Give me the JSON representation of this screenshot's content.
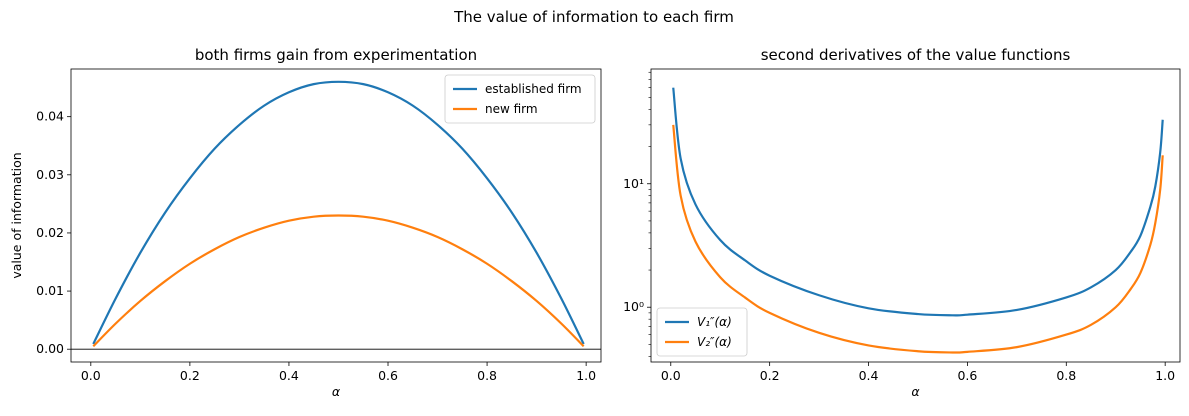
{
  "figure": {
    "suptitle": "The value of information to each firm"
  },
  "colors": {
    "blue": "#1f77b4",
    "orange": "#ff7f0e"
  },
  "chart_data": [
    {
      "type": "line",
      "title": "both firms gain from experimentation",
      "xlabel": "α",
      "ylabel": "value of information",
      "xlim": [
        -0.04,
        1.03
      ],
      "ylim": [
        -0.0022,
        0.0482
      ],
      "xticks": [
        0.0,
        0.2,
        0.4,
        0.6,
        0.8,
        1.0
      ],
      "xtick_labels": [
        "0.0",
        "0.2",
        "0.4",
        "0.6",
        "0.8",
        "1.0"
      ],
      "yticks": [
        0.0,
        0.01,
        0.02,
        0.03,
        0.04
      ],
      "ytick_labels": [
        "0.00",
        "0.01",
        "0.02",
        "0.03",
        "0.04"
      ],
      "hline": 0,
      "legend": "top-right",
      "series": [
        {
          "name": "established firm",
          "color": "#1f77b4",
          "x": [
            0.005,
            0.05,
            0.1,
            0.15,
            0.2,
            0.25,
            0.3,
            0.35,
            0.4,
            0.45,
            0.5,
            0.55,
            0.6,
            0.65,
            0.7,
            0.75,
            0.8,
            0.85,
            0.9,
            0.95,
            0.995
          ],
          "y": [
            0.0009,
            0.0087,
            0.0166,
            0.0235,
            0.0294,
            0.0345,
            0.0386,
            0.0419,
            0.0442,
            0.0456,
            0.046,
            0.0456,
            0.0442,
            0.0419,
            0.0386,
            0.0345,
            0.0294,
            0.0235,
            0.0166,
            0.0087,
            0.0009
          ]
        },
        {
          "name": "new firm",
          "color": "#ff7f0e",
          "x": [
            0.005,
            0.05,
            0.1,
            0.15,
            0.2,
            0.25,
            0.3,
            0.35,
            0.4,
            0.45,
            0.5,
            0.55,
            0.6,
            0.65,
            0.7,
            0.75,
            0.8,
            0.85,
            0.9,
            0.95,
            0.995
          ],
          "y": [
            0.0005,
            0.0044,
            0.0083,
            0.0117,
            0.0147,
            0.0172,
            0.0193,
            0.0209,
            0.0221,
            0.0228,
            0.023,
            0.0228,
            0.0221,
            0.0209,
            0.0193,
            0.0172,
            0.0147,
            0.0117,
            0.0083,
            0.0044,
            0.0005
          ]
        }
      ]
    },
    {
      "type": "line",
      "title": "second derivatives of the value functions",
      "xlabel": "α",
      "yscale": "log",
      "xlim": [
        -0.04,
        1.03
      ],
      "ylim": [
        0.36,
        85
      ],
      "xticks": [
        0.0,
        0.2,
        0.4,
        0.6,
        0.8,
        1.0
      ],
      "xtick_labels": [
        "0.0",
        "0.2",
        "0.4",
        "0.6",
        "0.8",
        "1.0"
      ],
      "yticks_major": [
        1,
        10
      ],
      "ytick_labels": [
        "10⁰",
        "10¹"
      ],
      "legend": "bottom-left",
      "series": [
        {
          "name": "V₁″(α)",
          "color": "#1f77b4",
          "x": [
            0.005,
            0.02,
            0.05,
            0.1,
            0.15,
            0.2,
            0.3,
            0.4,
            0.5,
            0.57,
            0.6,
            0.7,
            0.8,
            0.85,
            0.9,
            0.93,
            0.95,
            0.97,
            0.98,
            0.99,
            0.995
          ],
          "y": [
            60,
            16,
            6.8,
            3.5,
            2.4,
            1.8,
            1.25,
            0.98,
            0.88,
            0.86,
            0.87,
            0.95,
            1.2,
            1.45,
            2.0,
            2.8,
            3.8,
            6.5,
            9.5,
            18,
            33
          ]
        },
        {
          "name": "V₂″(α)",
          "color": "#ff7f0e",
          "x": [
            0.005,
            0.02,
            0.05,
            0.1,
            0.15,
            0.2,
            0.3,
            0.4,
            0.5,
            0.57,
            0.6,
            0.7,
            0.8,
            0.85,
            0.9,
            0.93,
            0.95,
            0.97,
            0.98,
            0.99,
            0.995
          ],
          "y": [
            30,
            8,
            3.4,
            1.75,
            1.2,
            0.9,
            0.62,
            0.49,
            0.44,
            0.43,
            0.435,
            0.475,
            0.6,
            0.72,
            1.0,
            1.4,
            1.9,
            3.2,
            4.8,
            9,
            17
          ]
        }
      ]
    }
  ]
}
